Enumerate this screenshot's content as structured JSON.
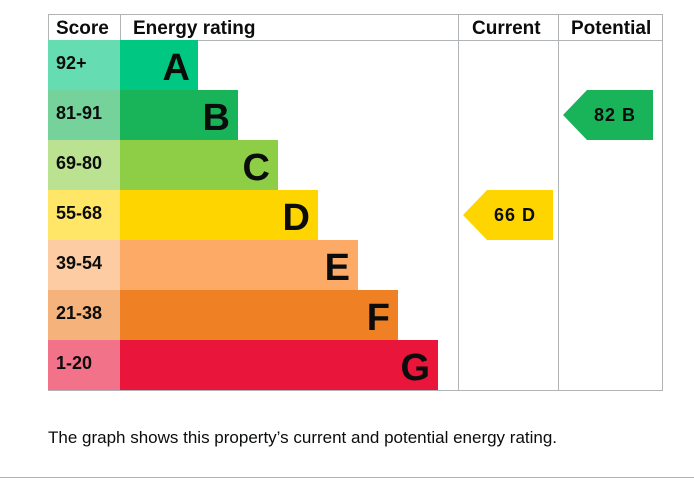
{
  "chart_data": {
    "type": "table",
    "columns": {
      "score": "Score",
      "rating": "Energy rating",
      "current": "Current",
      "potential": "Potential"
    },
    "bands": [
      {
        "letter": "A",
        "score": "92+",
        "color": "#00c781",
        "score_color": "#66dcb3"
      },
      {
        "letter": "B",
        "score": "81-91",
        "color": "#19b459",
        "score_color": "#75d29b"
      },
      {
        "letter": "C",
        "score": "69-80",
        "color": "#8dce46",
        "score_color": "#bbe290"
      },
      {
        "letter": "D",
        "score": "55-68",
        "color": "#ffd500",
        "score_color": "#ffe666"
      },
      {
        "letter": "E",
        "score": "39-54",
        "color": "#fcaa65",
        "score_color": "#fdcca3"
      },
      {
        "letter": "F",
        "score": "21-38",
        "color": "#ef8023",
        "score_color": "#f5b37b"
      },
      {
        "letter": "G",
        "score": "1-20",
        "color": "#e9153b",
        "score_color": "#f27389"
      }
    ],
    "current": {
      "value": 66,
      "band": "D",
      "label": "66 D"
    },
    "potential": {
      "value": 82,
      "band": "B",
      "label": "82 B"
    }
  },
  "caption": "The graph shows this property’s current and potential energy rating."
}
